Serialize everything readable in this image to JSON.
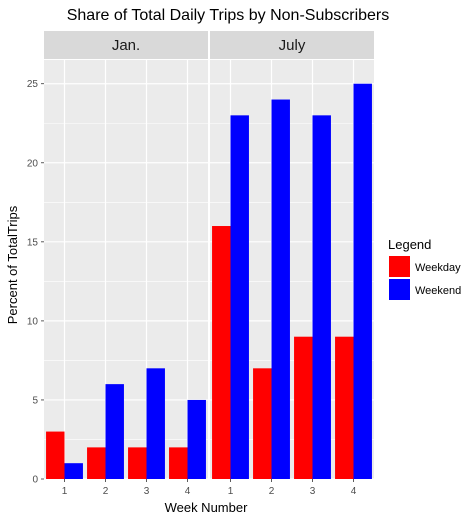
{
  "chart_data": {
    "type": "bar",
    "title": "Share of Total Daily Trips by Non-Subscribers",
    "xlabel": "Week Number",
    "ylabel": "Percent of TotalTrips",
    "ylim": [
      0,
      26.5
    ],
    "yticks": [
      0,
      5,
      10,
      15,
      20,
      25
    ],
    "grid": true,
    "legend": {
      "title": "Legend",
      "placement": "right",
      "entries": [
        {
          "name": "Weekday",
          "color": "#ff0000"
        },
        {
          "name": "Weekend",
          "color": "#0000ff"
        }
      ]
    },
    "categories": [
      "1",
      "2",
      "3",
      "4"
    ],
    "facets": [
      {
        "label": "Jan.",
        "series": [
          {
            "name": "Weekday",
            "values": [
              3,
              2,
              2,
              2
            ]
          },
          {
            "name": "Weekend",
            "values": [
              1,
              6,
              7,
              5
            ]
          }
        ]
      },
      {
        "label": "July",
        "series": [
          {
            "name": "Weekday",
            "values": [
              16,
              7,
              9,
              9
            ]
          },
          {
            "name": "Weekend",
            "values": [
              23,
              24,
              23,
              25
            ]
          }
        ]
      }
    ]
  },
  "colors": {
    "panel_background": "#ebebeb",
    "strip_background": "#d9d9d9",
    "gridline": "#ffffff"
  }
}
